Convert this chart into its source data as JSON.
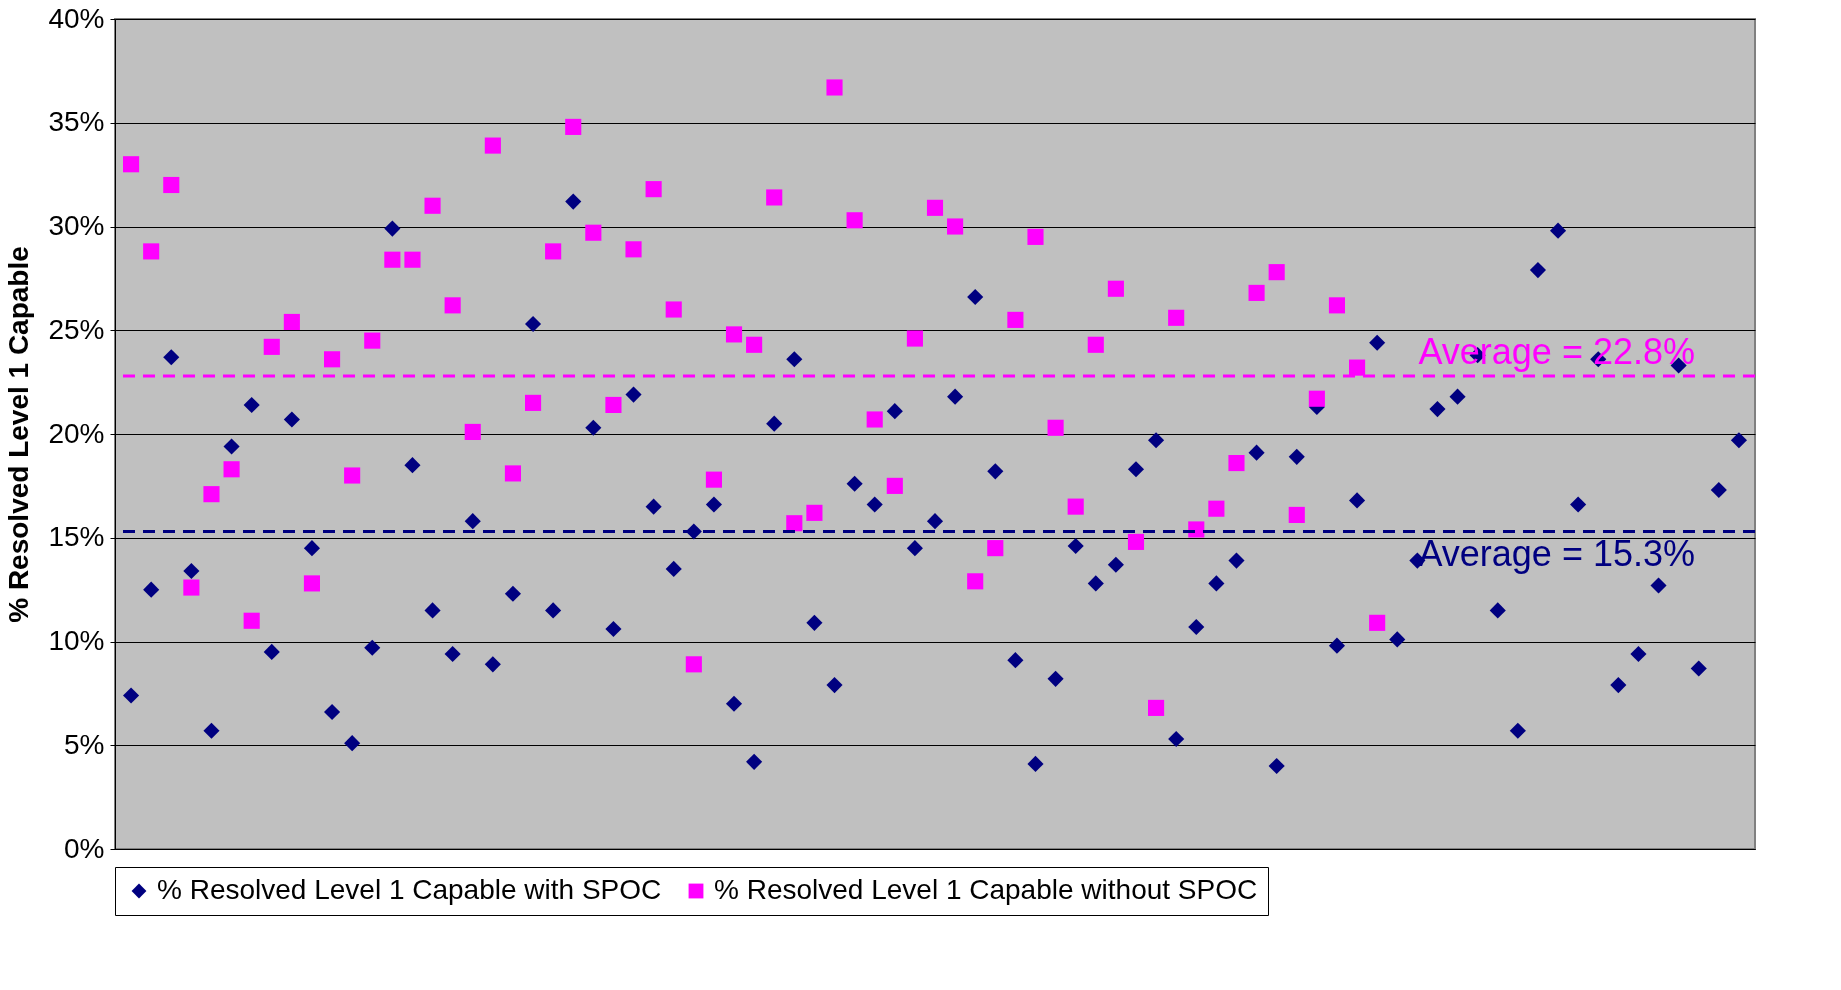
{
  "chart_data": {
    "type": "scatter",
    "ylabel": "% Resolved Level 1 Capable",
    "categories": [
      null,
      null,
      null,
      null,
      null,
      null,
      null,
      null,
      null,
      null,
      null,
      null,
      null,
      null,
      null,
      null,
      null,
      null,
      null,
      null,
      null,
      null,
      null,
      null,
      null,
      null,
      null,
      null,
      null,
      null,
      null,
      null,
      null,
      null,
      null,
      null,
      null,
      null,
      null,
      null,
      null,
      null,
      null,
      null,
      null,
      null,
      null,
      null,
      null,
      null,
      null,
      null,
      null,
      null,
      null,
      null,
      null,
      null,
      null,
      null,
      null,
      null,
      null,
      null,
      null,
      null,
      null,
      null,
      null,
      null,
      null,
      null,
      null,
      null,
      null,
      null,
      null,
      null,
      null,
      null,
      null
    ],
    "series": [
      {
        "name": "% Resolved Level 1 Capable with SPOC",
        "color": "#000080",
        "marker": "diamond",
        "values": [
          7.4,
          12.5,
          23.7,
          13.4,
          5.7,
          19.4,
          21.4,
          9.5,
          20.7,
          14.5,
          6.6,
          5.1,
          9.7,
          29.9,
          18.5,
          11.5,
          9.4,
          15.8,
          8.9,
          12.3,
          25.3,
          11.5,
          31.2,
          20.3,
          10.6,
          21.9,
          16.5,
          13.5,
          15.3,
          16.6,
          7.0,
          4.2,
          20.5,
          23.6,
          10.9,
          7.9,
          17.6,
          16.6,
          21.1,
          14.5,
          15.8,
          21.8,
          26.6,
          18.2,
          9.1,
          4.1,
          8.2,
          14.6,
          12.8,
          13.7,
          18.3,
          19.7,
          5.3,
          10.7,
          12.8,
          13.9,
          19.1,
          4.0,
          18.9,
          21.3,
          9.8,
          16.8,
          24.4,
          10.1,
          13.9,
          21.2,
          21.8,
          23.8,
          11.5,
          5.7,
          27.9,
          29.8,
          16.6,
          23.6,
          7.9,
          9.4,
          12.7,
          23.3,
          8.7,
          17.3,
          19.7
        ]
      },
      {
        "name": "% Resolved Level 1 Capable without SPOC",
        "color": "#ff00ff",
        "marker": "square",
        "values": [
          33.0,
          28.8,
          32.0,
          12.6,
          17.1,
          18.3,
          11.0,
          24.2,
          25.4,
          12.8,
          23.6,
          18.0,
          24.5,
          28.4,
          28.4,
          31.0,
          26.2,
          20.1,
          33.9,
          18.1,
          21.5,
          28.8,
          34.8,
          29.7,
          21.4,
          28.9,
          31.8,
          26.0,
          8.9,
          17.8,
          24.8,
          24.3,
          31.4,
          15.7,
          16.2,
          36.7,
          30.3,
          20.7,
          17.5,
          24.6,
          30.9,
          30.0,
          12.9,
          14.5,
          25.5,
          29.5,
          20.3,
          16.5,
          24.3,
          27.0,
          14.8,
          6.8,
          25.6,
          15.4,
          16.4,
          18.6,
          26.8,
          27.8,
          16.1,
          21.7,
          26.2,
          23.2,
          10.9,
          null,
          null,
          null,
          null,
          null,
          null,
          null,
          null,
          null,
          null,
          null,
          null,
          null,
          null,
          null,
          null,
          null,
          null
        ]
      }
    ],
    "ylim": [
      0,
      40
    ],
    "yticks": [
      {
        "value": 0,
        "label": "0%"
      },
      {
        "value": 5,
        "label": "5%"
      },
      {
        "value": 10,
        "label": "10%"
      },
      {
        "value": 15,
        "label": "15%"
      },
      {
        "value": 20,
        "label": "20%"
      },
      {
        "value": 25,
        "label": "25%"
      },
      {
        "value": 30,
        "label": "30%"
      },
      {
        "value": 35,
        "label": "35%"
      },
      {
        "value": 40,
        "label": "40%"
      }
    ],
    "ref_lines": [
      {
        "axis": "y",
        "value": 22.8,
        "label": "Average = 22.8%",
        "color": "#ff00ff",
        "line_style": "dashed"
      },
      {
        "axis": "y",
        "value": 15.3,
        "label": "Average = 15.3%",
        "color": "#000080",
        "line_style": "dashed"
      }
    ],
    "grid": "y",
    "legend": "bottom",
    "tick_labels": "y"
  }
}
